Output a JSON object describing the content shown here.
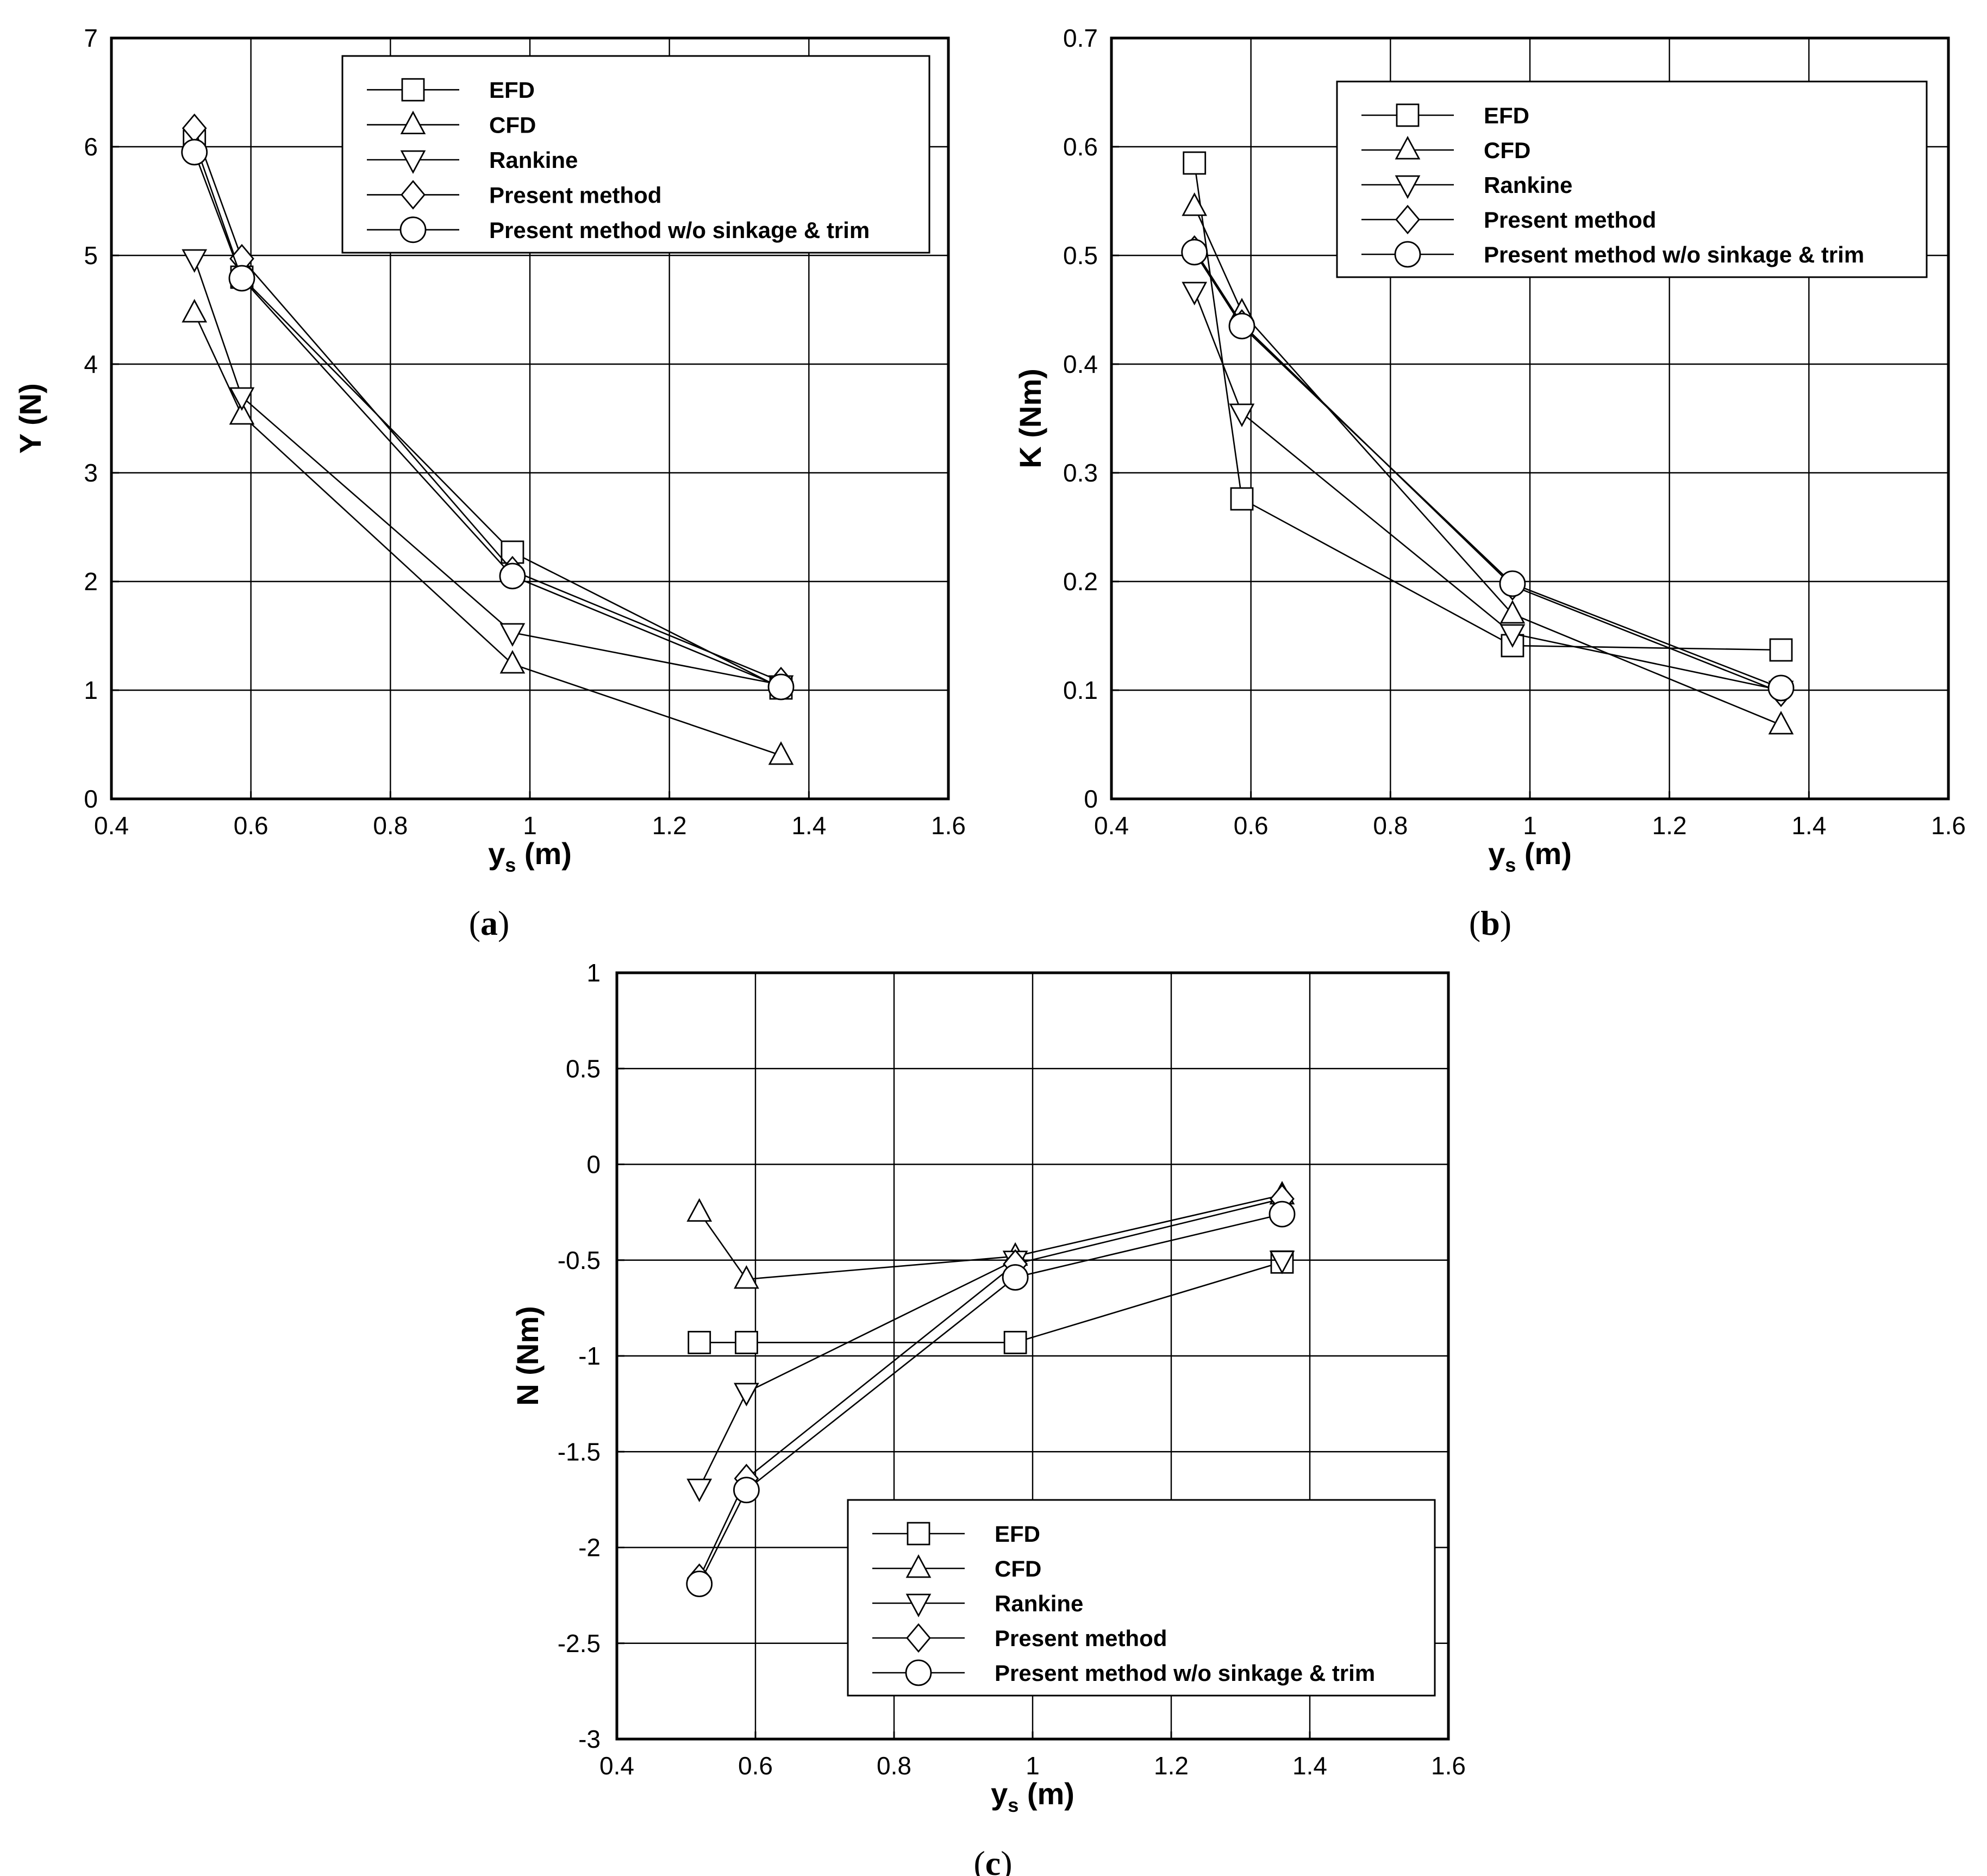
{
  "chart_data": [
    {
      "id": "a",
      "type": "line",
      "caption": "a",
      "xlabel": "y",
      "xlabel_sub": "s",
      "xlabel_unit": "(m)",
      "ylabel": "Y (N)",
      "xlim": [
        0.4,
        1.6
      ],
      "ylim": [
        0,
        7
      ],
      "xticks": [
        0.4,
        0.6,
        0.8,
        1,
        1.2,
        1.4,
        1.6
      ],
      "yticks": [
        0,
        1,
        2,
        3,
        4,
        5,
        6,
        7
      ],
      "legend_position": "top-right",
      "grid": true,
      "series": [
        {
          "name": "EFD",
          "marker": "square",
          "x": [
            0.519,
            0.587,
            0.975,
            1.36
          ],
          "y": [
            6.05,
            4.8,
            2.27,
            1.02
          ]
        },
        {
          "name": "CFD",
          "marker": "triangle-up",
          "x": [
            0.519,
            0.587,
            0.975,
            1.36
          ],
          "y": [
            4.47,
            3.53,
            1.24,
            0.4
          ]
        },
        {
          "name": "Rankine",
          "marker": "triangle-down",
          "x": [
            0.519,
            0.587,
            0.975,
            1.36
          ],
          "y": [
            4.97,
            3.7,
            1.53,
            1.05
          ]
        },
        {
          "name": "Present method",
          "marker": "diamond",
          "x": [
            0.519,
            0.587,
            0.975,
            1.36
          ],
          "y": [
            6.17,
            4.97,
            2.1,
            1.08
          ]
        },
        {
          "name": "Present method w/o sinkage & trim",
          "marker": "circle",
          "x": [
            0.519,
            0.587,
            0.975,
            1.36
          ],
          "y": [
            5.95,
            4.79,
            2.05,
            1.03
          ]
        }
      ]
    },
    {
      "id": "b",
      "type": "line",
      "caption": "b",
      "xlabel": "y",
      "xlabel_sub": "s",
      "xlabel_unit": "(m)",
      "ylabel": "K (Nm)",
      "xlim": [
        0.4,
        1.6
      ],
      "ylim": [
        0,
        0.7
      ],
      "xticks": [
        0.4,
        0.6,
        0.8,
        1,
        1.2,
        1.4,
        1.6
      ],
      "yticks": [
        0,
        0.1,
        0.2,
        0.3,
        0.4,
        0.5,
        0.6,
        0.7
      ],
      "legend_position": "top-right",
      "grid": true,
      "series": [
        {
          "name": "EFD",
          "marker": "square",
          "x": [
            0.519,
            0.587,
            0.975,
            1.36
          ],
          "y": [
            0.585,
            0.276,
            0.141,
            0.137
          ]
        },
        {
          "name": "CFD",
          "marker": "triangle-up",
          "x": [
            0.519,
            0.587,
            0.975,
            1.36
          ],
          "y": [
            0.545,
            0.448,
            0.17,
            0.068
          ]
        },
        {
          "name": "Rankine",
          "marker": "triangle-down",
          "x": [
            0.519,
            0.587,
            0.975,
            1.36
          ],
          "y": [
            0.467,
            0.355,
            0.152,
            0.1
          ]
        },
        {
          "name": "Present method",
          "marker": "diamond",
          "x": [
            0.519,
            0.587,
            0.975,
            1.36
          ],
          "y": [
            0.505,
            0.437,
            0.196,
            0.098
          ]
        },
        {
          "name": "Present method w/o sinkage & trim",
          "marker": "circle",
          "x": [
            0.519,
            0.587,
            0.975,
            1.36
          ],
          "y": [
            0.503,
            0.435,
            0.198,
            0.102
          ]
        }
      ]
    },
    {
      "id": "c",
      "type": "line",
      "caption": "c",
      "xlabel": "y",
      "xlabel_sub": "s",
      "xlabel_unit": "(m)",
      "ylabel": "N (Nm)",
      "xlim": [
        0.4,
        1.6
      ],
      "ylim": [
        -3,
        1
      ],
      "xticks": [
        0.4,
        0.6,
        0.8,
        1,
        1.2,
        1.4,
        1.6
      ],
      "yticks": [
        -3,
        -2.5,
        -2,
        -1.5,
        -1,
        -0.5,
        0,
        0.5,
        1
      ],
      "legend_position": "bottom-right",
      "grid": true,
      "series": [
        {
          "name": "EFD",
          "marker": "square",
          "x": [
            0.519,
            0.587,
            0.975,
            1.36
          ],
          "y": [
            -0.93,
            -0.93,
            -0.93,
            -0.51
          ]
        },
        {
          "name": "CFD",
          "marker": "triangle-up",
          "x": [
            0.519,
            0.587,
            0.975,
            1.36
          ],
          "y": [
            -0.25,
            -0.6,
            -0.48,
            -0.16
          ]
        },
        {
          "name": "Rankine",
          "marker": "triangle-down",
          "x": [
            0.519,
            0.587,
            0.975,
            1.36
          ],
          "y": [
            -1.69,
            -1.19,
            -0.5,
            -0.5
          ]
        },
        {
          "name": "Present method",
          "marker": "diamond",
          "x": [
            0.519,
            0.587,
            0.975,
            1.36
          ],
          "y": [
            -2.16,
            -1.64,
            -0.52,
            -0.18
          ]
        },
        {
          "name": "Present method w/o sinkage & trim",
          "marker": "circle",
          "x": [
            0.519,
            0.587,
            0.975,
            1.36
          ],
          "y": [
            -2.19,
            -1.7,
            -0.59,
            -0.26
          ]
        }
      ]
    }
  ]
}
